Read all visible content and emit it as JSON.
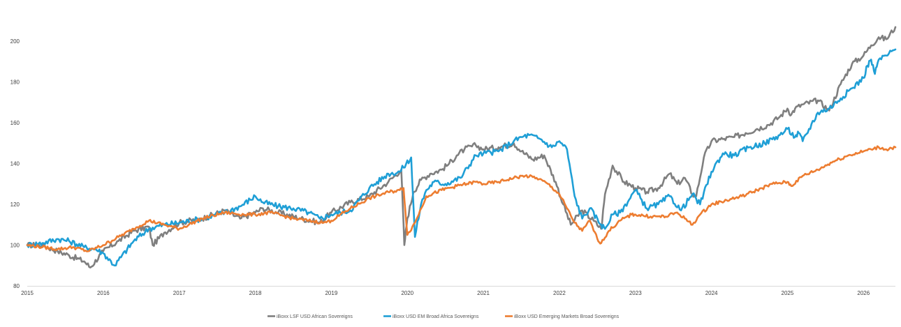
{
  "chart_data": {
    "type": "line",
    "title": "",
    "xlabel": "",
    "ylabel": "",
    "x_ticks": [
      "2015",
      "2016",
      "2017",
      "2018",
      "2019",
      "2020",
      "2021",
      "2022",
      "2023",
      "2024",
      "2025",
      "2026"
    ],
    "y_ticks": [
      80,
      100,
      120,
      140,
      160,
      180,
      200
    ],
    "xlim": [
      2015.0,
      2026.42
    ],
    "ylim": [
      80,
      210
    ],
    "grid": false,
    "legend_position": "bottom",
    "series": [
      {
        "name": "iBoxx LSF USD African Sovereigns",
        "color": "#7f7f7f",
        "x": [
          2015.0,
          2015.2,
          2015.4,
          2015.55,
          2015.75,
          2015.83,
          2016.0,
          2016.2,
          2016.4,
          2016.6,
          2016.65,
          2016.8,
          2017.0,
          2017.3,
          2017.6,
          2017.8,
          2018.0,
          2018.1,
          2018.3,
          2018.6,
          2018.85,
          2019.0,
          2019.25,
          2019.5,
          2019.75,
          2019.92,
          2019.96,
          2020.0,
          2020.08,
          2020.18,
          2020.3,
          2020.45,
          2020.55,
          2020.65,
          2020.75,
          2020.9,
          2021.0,
          2021.2,
          2021.4,
          2021.5,
          2021.65,
          2021.8,
          2021.95,
          2022.05,
          2022.15,
          2022.3,
          2022.45,
          2022.55,
          2022.6,
          2022.7,
          2022.85,
          2023.0,
          2023.15,
          2023.3,
          2023.45,
          2023.55,
          2023.65,
          2023.75,
          2023.8,
          2023.9,
          2024.0,
          2024.15,
          2024.3,
          2024.45,
          2024.6,
          2024.75,
          2024.9,
          2025.0,
          2025.05,
          2025.1,
          2025.2,
          2025.4,
          2025.55,
          2025.7,
          2025.85,
          2026.0,
          2026.1,
          2026.2,
          2026.3,
          2026.42
        ],
        "values": [
          100,
          100,
          97,
          95,
          92,
          89,
          97,
          102,
          107,
          109,
          100,
          106,
          111,
          113,
          117,
          113,
          116,
          118,
          116,
          113,
          111,
          116,
          121,
          124,
          131,
          137,
          100,
          113,
          126,
          132,
          135,
          137,
          140,
          144,
          147,
          149,
          147,
          148,
          150,
          146,
          142,
          144,
          131,
          120,
          110,
          117,
          112,
          108,
          125,
          139,
          131,
          128,
          126,
          128,
          135,
          130,
          133,
          125,
          124,
          143,
          151,
          152,
          153,
          155,
          157,
          159,
          163,
          167,
          164,
          167,
          169,
          171,
          166,
          179,
          189,
          193,
          198,
          202,
          201,
          207
        ]
      },
      {
        "name": "iBoxx USD EM Broad Africa Sovereigns",
        "color": "#1f9fd6",
        "x": [
          2015.0,
          2015.2,
          2015.4,
          2015.55,
          2015.75,
          2015.9,
          2016.0,
          2016.15,
          2016.4,
          2016.6,
          2016.8,
          2017.0,
          2017.3,
          2017.6,
          2017.8,
          2018.0,
          2018.1,
          2018.3,
          2018.5,
          2018.7,
          2018.85,
          2019.0,
          2019.25,
          2019.5,
          2019.75,
          2019.9,
          2020.05,
          2020.1,
          2020.18,
          2020.25,
          2020.35,
          2020.5,
          2020.7,
          2020.9,
          2021.0,
          2021.2,
          2021.4,
          2021.5,
          2021.6,
          2021.75,
          2021.9,
          2022.0,
          2022.1,
          2022.2,
          2022.3,
          2022.4,
          2022.55,
          2022.6,
          2022.7,
          2022.8,
          2023.0,
          2023.15,
          2023.3,
          2023.45,
          2023.6,
          2023.75,
          2023.85,
          2024.0,
          2024.15,
          2024.3,
          2024.5,
          2024.7,
          2024.9,
          2025.0,
          2025.1,
          2025.15,
          2025.2,
          2025.4,
          2025.55,
          2025.7,
          2025.85,
          2026.0,
          2026.05,
          2026.1,
          2026.15,
          2026.2,
          2026.3,
          2026.42
        ],
        "values": [
          100,
          101,
          103,
          102,
          99,
          98,
          96,
          90,
          102,
          108,
          110,
          111,
          113,
          116,
          119,
          124,
          121,
          119,
          118,
          116,
          113,
          115,
          117,
          128,
          135,
          136,
          143,
          104,
          120,
          127,
          131,
          130,
          133,
          144,
          145,
          146,
          151,
          153,
          154,
          152,
          148,
          151,
          147,
          124,
          113,
          118,
          110,
          108,
          115,
          116,
          127,
          118,
          120,
          124,
          117,
          125,
          120,
          136,
          145,
          144,
          148,
          150,
          154,
          157,
          153,
          155,
          151,
          165,
          167,
          172,
          177,
          182,
          188,
          191,
          184,
          191,
          193,
          196
        ]
      },
      {
        "name": "iBoxx USD Emerging Markets Broad Sovereigns",
        "color": "#ed7d31",
        "x": [
          2015.0,
          2015.2,
          2015.4,
          2015.6,
          2015.8,
          2016.0,
          2016.2,
          2016.4,
          2016.6,
          2016.8,
          2017.0,
          2017.3,
          2017.6,
          2017.85,
          2018.0,
          2018.2,
          2018.5,
          2018.7,
          2018.9,
          2019.0,
          2019.25,
          2019.5,
          2019.75,
          2019.9,
          2019.95,
          2020.0,
          2020.1,
          2020.25,
          2020.45,
          2020.65,
          2020.9,
          2021.0,
          2021.2,
          2021.4,
          2021.55,
          2021.7,
          2021.85,
          2022.0,
          2022.1,
          2022.2,
          2022.3,
          2022.4,
          2022.5,
          2022.55,
          2022.65,
          2022.8,
          2022.95,
          2023.0,
          2023.2,
          2023.4,
          2023.55,
          2023.65,
          2023.75,
          2023.85,
          2024.0,
          2024.2,
          2024.4,
          2024.6,
          2024.8,
          2025.0,
          2025.05,
          2025.2,
          2025.4,
          2025.6,
          2025.8,
          2026.0,
          2026.1,
          2026.2,
          2026.3,
          2026.42
        ],
        "values": [
          100,
          99,
          98,
          99,
          97,
          100,
          104,
          108,
          112,
          110,
          108,
          113,
          116,
          115,
          115,
          116,
          113,
          112,
          111,
          112,
          118,
          123,
          126,
          127,
          128,
          105,
          111,
          124,
          127,
          129,
          131,
          130,
          131,
          133,
          134,
          133,
          130,
          125,
          118,
          111,
          107,
          112,
          103,
          101,
          107,
          112,
          115,
          115,
          114,
          114,
          116,
          113,
          110,
          115,
          120,
          122,
          124,
          127,
          130,
          131,
          129,
          134,
          137,
          141,
          144,
          146,
          147,
          148,
          147,
          148
        ]
      }
    ]
  }
}
